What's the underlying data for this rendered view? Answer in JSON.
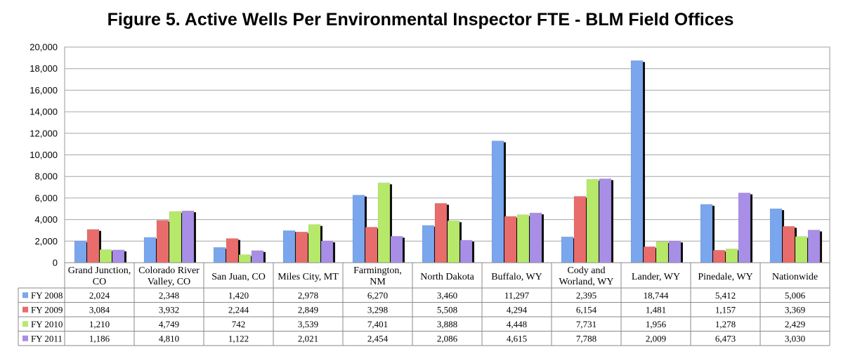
{
  "chart_data": {
    "type": "bar",
    "title": "Figure 5. Active Wells Per Environmental Inspector FTE - BLM Field Offices",
    "categories": [
      [
        "Grand Junction,",
        "CO"
      ],
      [
        "Colorado River",
        "Valley, CO"
      ],
      [
        "San Juan, CO"
      ],
      [
        "Miles City, MT"
      ],
      [
        "Farmington,",
        "NM"
      ],
      [
        "North Dakota"
      ],
      [
        "Buffalo, WY"
      ],
      [
        "Cody and",
        "Worland, WY"
      ],
      [
        "Lander, WY"
      ],
      [
        "Pinedale, WY"
      ],
      [
        "Nationwide"
      ]
    ],
    "series": [
      {
        "name": "FY 2008",
        "color": "#7aa6ee",
        "values": [
          2024,
          2348,
          1420,
          2978,
          6270,
          3460,
          11297,
          2395,
          18744,
          5412,
          5006
        ],
        "labels": [
          "2,024",
          "2,348",
          "1,420",
          "2,978",
          "6,270",
          "3,460",
          "11,297",
          "2,395",
          "18,744",
          "5,412",
          "5,006"
        ]
      },
      {
        "name": "FY 2009",
        "color": "#e96c6c",
        "values": [
          3084,
          3932,
          2244,
          2849,
          3298,
          5508,
          4294,
          6154,
          1481,
          1157,
          3369
        ],
        "labels": [
          "3,084",
          "3,932",
          "2,244",
          "2,849",
          "3,298",
          "5,508",
          "4,294",
          "6,154",
          "1,481",
          "1,157",
          "3,369"
        ]
      },
      {
        "name": "FY 2010",
        "color": "#b6e96a",
        "values": [
          1210,
          4749,
          742,
          3539,
          7401,
          3888,
          4448,
          7731,
          1956,
          1278,
          2429
        ],
        "labels": [
          "1,210",
          "4,749",
          "742",
          "3,539",
          "7,401",
          "3,888",
          "4,448",
          "7,731",
          "1,956",
          "1,278",
          "2,429"
        ]
      },
      {
        "name": "FY 2011",
        "color": "#a88ee6",
        "values": [
          1186,
          4810,
          1122,
          2021,
          2454,
          2086,
          4615,
          7788,
          2009,
          6473,
          3030
        ],
        "labels": [
          "1,186",
          "4,810",
          "1,122",
          "2,021",
          "2,454",
          "2,086",
          "4,615",
          "7,788",
          "2,009",
          "6,473",
          "3,030"
        ]
      }
    ],
    "ylim": [
      0,
      20000
    ],
    "yticks": [
      "0",
      "2,000",
      "4,000",
      "6,000",
      "8,000",
      "10,000",
      "12,000",
      "14,000",
      "16,000",
      "18,000",
      "20,000"
    ],
    "grid": true,
    "legend": "data-table"
  }
}
